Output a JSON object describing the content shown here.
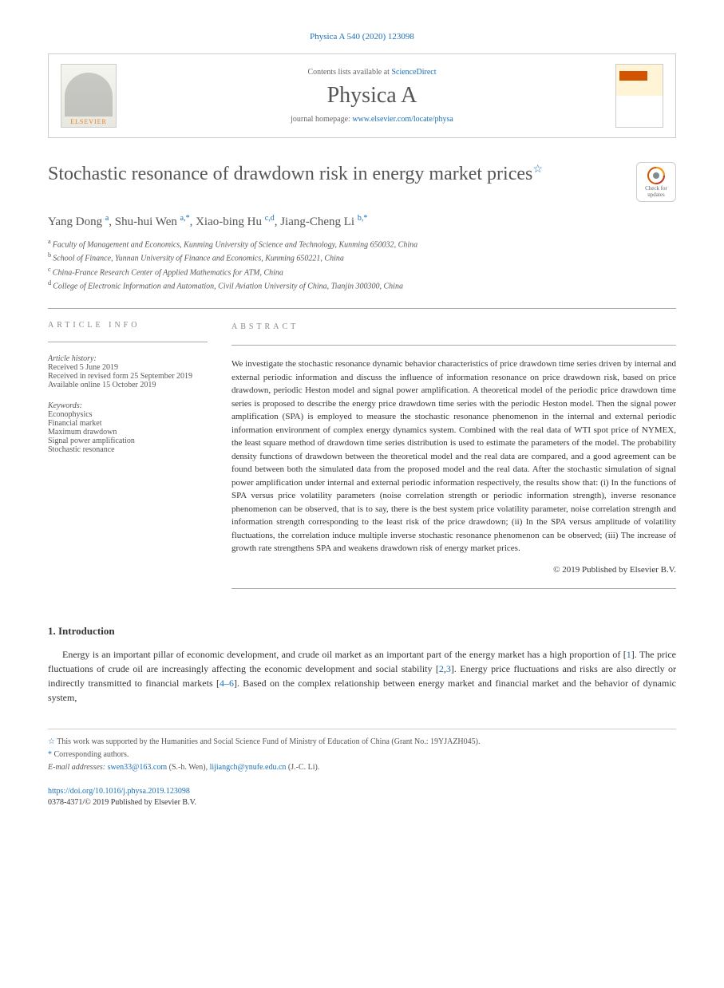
{
  "citation": "Physica A 540 (2020) 123098",
  "header": {
    "contents_prefix": "Contents lists available at ",
    "contents_link": "ScienceDirect",
    "journal_name": "Physica A",
    "homepage_prefix": "journal homepage: ",
    "homepage_url": "www.elsevier.com/locate/physa",
    "elsevier_label": "ELSEVIER"
  },
  "title": "Stochastic resonance of drawdown risk in energy market prices",
  "check_updates_label": "Check for updates",
  "authors": [
    {
      "name": "Yang Dong",
      "sup": "a"
    },
    {
      "name": "Shu-hui Wen",
      "sup": "a,*"
    },
    {
      "name": "Xiao-bing Hu",
      "sup": "c,d"
    },
    {
      "name": "Jiang-Cheng Li",
      "sup": "b,*"
    }
  ],
  "affiliations": [
    {
      "sup": "a",
      "text": "Faculty of Management and Economics, Kunming University of Science and Technology, Kunming 650032, China"
    },
    {
      "sup": "b",
      "text": "School of Finance, Yunnan University of Finance and Economics, Kunming 650221, China"
    },
    {
      "sup": "c",
      "text": "China-France Research Center of Applied Mathematics for ATM, China"
    },
    {
      "sup": "d",
      "text": "College of Electronic Information and Automation, Civil Aviation University of China, Tianjin 300300, China"
    }
  ],
  "info": {
    "header": "ARTICLE INFO",
    "history_label": "Article history:",
    "history": [
      "Received 5 June 2019",
      "Received in revised form 25 September 2019",
      "Available online 15 October 2019"
    ],
    "keywords_label": "Keywords:",
    "keywords": [
      "Econophysics",
      "Financial market",
      "Maximum drawdown",
      "Signal power amplification",
      "Stochastic resonance"
    ]
  },
  "abstract": {
    "header": "ABSTRACT",
    "text": "We investigate the stochastic resonance dynamic behavior characteristics of price drawdown time series driven by internal and external periodic information and discuss the influence of information resonance on price drawdown risk, based on price drawdown, periodic Heston model and signal power amplification. A theoretical model of the periodic price drawdown time series is proposed to describe the energy price drawdown time series with the periodic Heston model. Then the signal power amplification (SPA) is employed to measure the stochastic resonance phenomenon in the internal and external periodic information environment of complex energy dynamics system. Combined with the real data of WTI spot price of NYMEX, the least square method of drawdown time series distribution is used to estimate the parameters of the model. The probability density functions of drawdown between the theoretical model and the real data are compared, and a good agreement can be found between both the simulated data from the proposed model and the real data. After the stochastic simulation of signal power amplification under internal and external periodic information respectively, the results show that: (i) In the functions of SPA versus price volatility parameters (noise correlation strength or periodic information strength), inverse resonance phenomenon can be observed, that is to say, there is the best system price volatility parameter, noise correlation strength and information strength corresponding to the least risk of the price drawdown; (ii) In the SPA versus amplitude of volatility fluctuations, the correlation induce multiple inverse stochastic resonance phenomenon can be observed; (iii) The increase of growth rate strengthens SPA and weakens drawdown risk of energy market prices.",
    "copyright": "© 2019 Published by Elsevier B.V."
  },
  "section1": {
    "heading": "1. Introduction",
    "text": "Energy is an important pillar of economic development, and crude oil market as an important part of the energy market has a high proportion of [1]. The price fluctuations of crude oil are increasingly affecting the economic development and social stability [2,3]. Energy price fluctuations and risks are also directly or indirectly transmitted to financial markets [4–6]. Based on the complex relationship between energy market and financial market and the behavior of dynamic system,"
  },
  "footnotes": {
    "funding": "This work was supported by the Humanities and Social Science Fund of Ministry of Education of China (Grant No.: 19YJAZH045).",
    "corresponding": "Corresponding authors.",
    "email_label": "E-mail addresses:",
    "emails": [
      {
        "addr": "swen33@163.com",
        "who": "(S.-h. Wen)"
      },
      {
        "addr": "lijiangch@ynufe.edu.cn",
        "who": "(J.-C. Li)"
      }
    ]
  },
  "footer": {
    "doi": "https://doi.org/10.1016/j.physa.2019.123098",
    "issn_copyright": "0378-4371/© 2019 Published by Elsevier B.V."
  },
  "colors": {
    "link": "#1a6fb5",
    "text": "#333333",
    "muted": "#555555",
    "border": "#cccccc",
    "orange": "#e67e22"
  }
}
